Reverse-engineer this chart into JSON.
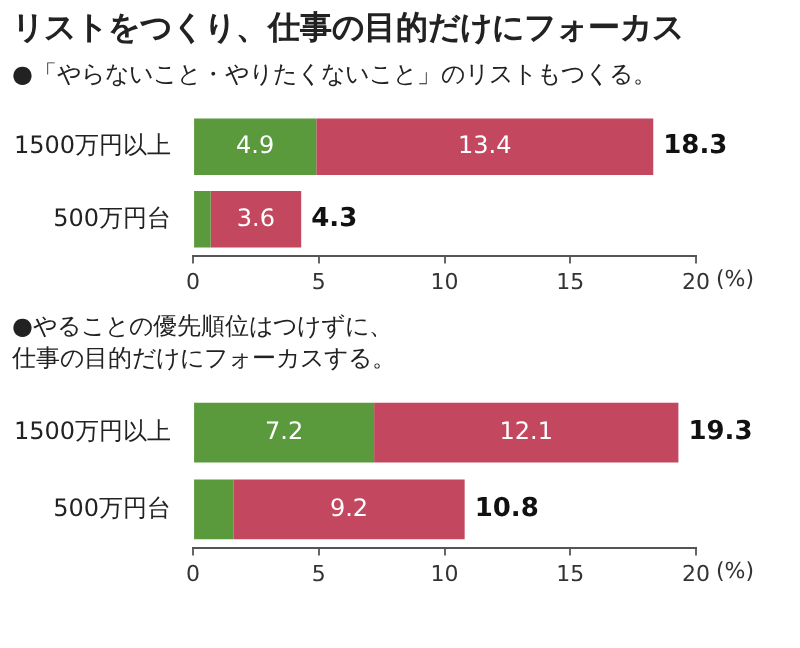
{
  "chart_data": [
    {
      "type": "bar",
      "title": "リストをつくり、仕事の目的だけにフォーカス",
      "subtitle": "●「やらないこと・やりたくないこと」のリストもつくる。",
      "orientation": "horizontal",
      "stacked": true,
      "categories": [
        "1500万円以上",
        "500万円台"
      ],
      "xlabel": "(%)",
      "series": [
        {
          "color": "#5b9a3c",
          "values": [
            4.9,
            0.7
          ],
          "value_labels": [
            "4.9",
            null
          ]
        },
        {
          "color": "#c2475f",
          "values": [
            13.4,
            3.6
          ],
          "value_labels": [
            "13.4",
            "3.6"
          ]
        }
      ],
      "totals": [
        "18.3",
        "4.3"
      ],
      "xlim": [
        0,
        20
      ],
      "xticks": [
        0,
        5,
        10,
        15,
        20
      ],
      "grid": false,
      "legend": false
    },
    {
      "type": "bar",
      "subtitle": "●やることの優先順位はつけずに、仕事の目的だけにフォーカスする。",
      "orientation": "horizontal",
      "stacked": true,
      "categories": [
        "1500万円以上",
        "500万円台"
      ],
      "xlabel": "(%)",
      "series": [
        {
          "color": "#5b9a3c",
          "values": [
            7.2,
            1.6
          ],
          "value_labels": [
            "7.2",
            null
          ]
        },
        {
          "color": "#c2475f",
          "values": [
            12.1,
            9.2
          ],
          "value_labels": [
            "12.1",
            "9.2"
          ]
        }
      ],
      "totals": [
        "19.3",
        "10.8"
      ],
      "xlim": [
        0,
        20
      ],
      "xticks": [
        0,
        5,
        10,
        15,
        20
      ],
      "grid": false,
      "legend": false
    }
  ]
}
